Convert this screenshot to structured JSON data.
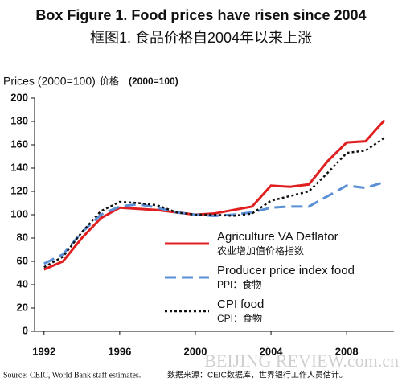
{
  "chart_data": {
    "type": "line",
    "title": "Box Figure 1. Food prices have risen since 2004",
    "subtitle": "框图1. 食品价格自2004年以来上涨",
    "y_label": "Prices (2000=100)",
    "y_label_zh": "价格",
    "y_label_note": "(2000=100)",
    "source": "Source: CEIC, World Bank staff estimates.",
    "source_zh": "数据来源：CEIC数据库，世界银行工作人员估计。",
    "watermark": "BEIJING REVIEW.com.cn",
    "x": [
      1992,
      1993,
      1994,
      1995,
      1996,
      1997,
      1998,
      1999,
      2000,
      2001,
      2002,
      2003,
      2004,
      2005,
      2006,
      2007,
      2008,
      2009,
      2010
    ],
    "xlim": [
      1991.5,
      2010.5
    ],
    "xticks": [
      1992,
      1996,
      2000,
      2004,
      2008
    ],
    "ylim": [
      0,
      200
    ],
    "yticks": [
      0,
      20,
      40,
      60,
      80,
      100,
      120,
      140,
      160,
      180,
      200
    ],
    "grid": false,
    "legend": "lower right",
    "series": [
      {
        "name": "Agriculture VA Deflator",
        "name_zh": "农业增加值价格指数",
        "color": "#e02020",
        "dash": "solid",
        "values": [
          53,
          60,
          80,
          97,
          106,
          105,
          104,
          102,
          100,
          101,
          104,
          107,
          125,
          124,
          126,
          146,
          162,
          163,
          181
        ]
      },
      {
        "name": "Producer price index food",
        "name_zh": "PPI：食物",
        "color": "#5b8fd6",
        "dash": "dashed",
        "values": [
          58,
          66,
          85,
          100,
          107,
          109,
          106,
          102,
          100,
          99,
          100,
          102,
          106,
          107,
          107,
          116,
          125,
          123,
          128
        ]
      },
      {
        "name": "CPI food",
        "name_zh": "CPI：食物",
        "color": "#111111",
        "dash": "dotted",
        "values": [
          55,
          64,
          85,
          103,
          111,
          110,
          108,
          102,
          100,
          100,
          99,
          101,
          112,
          116,
          120,
          136,
          153,
          155,
          166
        ]
      }
    ]
  }
}
